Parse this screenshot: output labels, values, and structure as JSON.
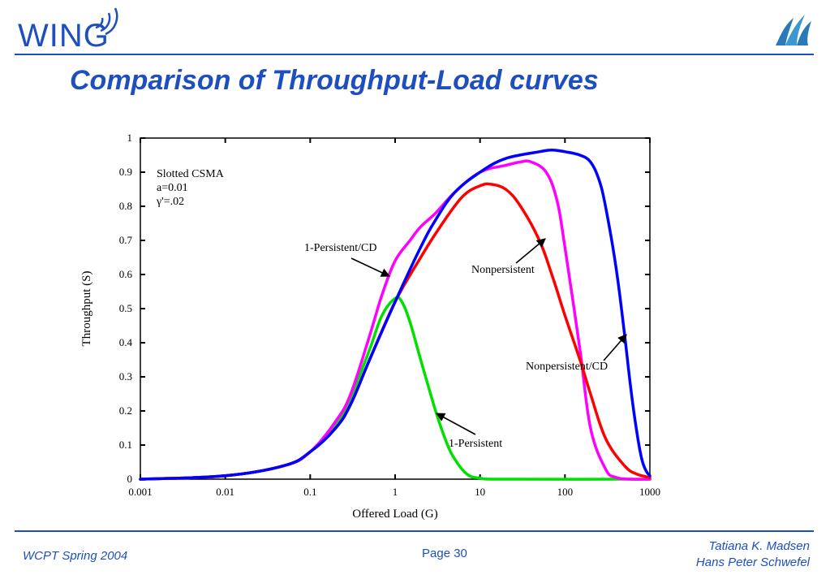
{
  "header": {
    "logo_text": "WING",
    "title": "Comparison of Throughput-Load curves",
    "colors": {
      "brand": "#1f4fbf"
    }
  },
  "footer": {
    "left": "WCPT Spring 2004",
    "center": "Page 30",
    "right_line1": "Tatiana K. Madsen",
    "right_line2": "Hans Peter Schwefel"
  },
  "chart_data": {
    "type": "line",
    "xlabel": "Offered Load (G)",
    "ylabel": "Throughput (S)",
    "x_scale": "log",
    "xlim": [
      0.001,
      1000
    ],
    "ylim": [
      0,
      1
    ],
    "x_ticks": [
      "0.001",
      "0.01",
      "0.1",
      "1",
      "10",
      "100",
      "1000"
    ],
    "y_ticks": [
      "0",
      "0.1",
      "0.2",
      "0.3",
      "0.4",
      "0.5",
      "0.6",
      "0.7",
      "0.8",
      "0.9",
      "1"
    ],
    "annotation_box": {
      "line1": "Slotted CSMA",
      "line2": "a=0.01",
      "line3": "γ'=.02"
    },
    "series": [
      {
        "name": "1-Persistent",
        "color": "#00e000",
        "points": [
          [
            0.001,
            0.0
          ],
          [
            0.01,
            0.01
          ],
          [
            0.05,
            0.04
          ],
          [
            0.1,
            0.08
          ],
          [
            0.2,
            0.16
          ],
          [
            0.3,
            0.24
          ],
          [
            0.5,
            0.38
          ],
          [
            0.7,
            0.48
          ],
          [
            1.0,
            0.53
          ],
          [
            1.2,
            0.52
          ],
          [
            1.5,
            0.46
          ],
          [
            2.0,
            0.35
          ],
          [
            3.0,
            0.2
          ],
          [
            4.0,
            0.11
          ],
          [
            5.0,
            0.06
          ],
          [
            7.0,
            0.015
          ],
          [
            10,
            0.003
          ],
          [
            20,
            0.0
          ],
          [
            1000,
            0.0
          ]
        ]
      },
      {
        "name": "1-Persistent/CD",
        "color": "#ff00ff",
        "points": [
          [
            0.001,
            0.0
          ],
          [
            0.01,
            0.01
          ],
          [
            0.05,
            0.04
          ],
          [
            0.1,
            0.08
          ],
          [
            0.2,
            0.17
          ],
          [
            0.3,
            0.25
          ],
          [
            0.5,
            0.42
          ],
          [
            0.7,
            0.54
          ],
          [
            1.0,
            0.64
          ],
          [
            1.5,
            0.7
          ],
          [
            2.0,
            0.74
          ],
          [
            3.0,
            0.78
          ],
          [
            5.0,
            0.84
          ],
          [
            10,
            0.9
          ],
          [
            20,
            0.92
          ],
          [
            30,
            0.93
          ],
          [
            40,
            0.93
          ],
          [
            60,
            0.9
          ],
          [
            80,
            0.82
          ],
          [
            100,
            0.68
          ],
          [
            150,
            0.38
          ],
          [
            200,
            0.15
          ],
          [
            300,
            0.03
          ],
          [
            400,
            0.005
          ],
          [
            600,
            0.0
          ],
          [
            1000,
            0.0
          ]
        ]
      },
      {
        "name": "Nonpersistent",
        "color": "#ff0000",
        "points": [
          [
            0.001,
            0.0
          ],
          [
            0.01,
            0.01
          ],
          [
            0.05,
            0.04
          ],
          [
            0.1,
            0.08
          ],
          [
            0.2,
            0.15
          ],
          [
            0.3,
            0.22
          ],
          [
            0.5,
            0.35
          ],
          [
            1.0,
            0.52
          ],
          [
            2.0,
            0.65
          ],
          [
            3.0,
            0.72
          ],
          [
            5.0,
            0.8
          ],
          [
            7.0,
            0.84
          ],
          [
            10,
            0.86
          ],
          [
            13,
            0.865
          ],
          [
            20,
            0.85
          ],
          [
            30,
            0.8
          ],
          [
            50,
            0.7
          ],
          [
            70,
            0.6
          ],
          [
            100,
            0.48
          ],
          [
            150,
            0.35
          ],
          [
            200,
            0.25
          ],
          [
            300,
            0.12
          ],
          [
            500,
            0.04
          ],
          [
            700,
            0.015
          ],
          [
            1000,
            0.005
          ]
        ]
      },
      {
        "name": "Nonpersistent/CD",
        "color": "#0000ff",
        "points": [
          [
            0.001,
            0.0
          ],
          [
            0.01,
            0.01
          ],
          [
            0.05,
            0.04
          ],
          [
            0.1,
            0.08
          ],
          [
            0.2,
            0.15
          ],
          [
            0.3,
            0.22
          ],
          [
            0.5,
            0.35
          ],
          [
            1.0,
            0.52
          ],
          [
            2.0,
            0.68
          ],
          [
            3.0,
            0.76
          ],
          [
            5.0,
            0.84
          ],
          [
            10,
            0.9
          ],
          [
            20,
            0.94
          ],
          [
            50,
            0.96
          ],
          [
            70,
            0.965
          ],
          [
            100,
            0.96
          ],
          [
            150,
            0.95
          ],
          [
            200,
            0.93
          ],
          [
            250,
            0.88
          ],
          [
            300,
            0.8
          ],
          [
            400,
            0.62
          ],
          [
            500,
            0.43
          ],
          [
            600,
            0.26
          ],
          [
            700,
            0.14
          ],
          [
            800,
            0.06
          ],
          [
            900,
            0.025
          ],
          [
            1000,
            0.01
          ]
        ]
      }
    ],
    "labels": [
      {
        "text": "1-Persistent/CD",
        "series": "1-Persistent/CD"
      },
      {
        "text": "Nonpersistent",
        "series": "Nonpersistent"
      },
      {
        "text": "Nonpersistent/CD",
        "series": "Nonpersistent/CD"
      },
      {
        "text": "1-Persistent",
        "series": "1-Persistent"
      }
    ]
  }
}
